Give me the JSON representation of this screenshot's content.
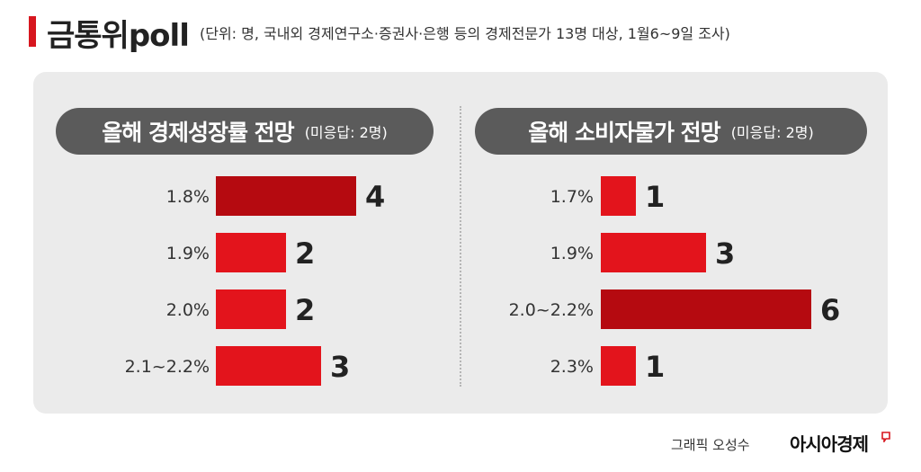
{
  "title": "금통위poll",
  "subtitle": "(단위: 명, 국내외 경제연구소·증권사·은행 등의 경제전문가 13명 대상, 1월6~9일 조사)",
  "credit": "그래픽 오성수",
  "logo_text": "아시아경제",
  "colors": {
    "accent": "#d7171f",
    "bar": "#e3141c",
    "bar_max": "#b50a10",
    "pill": "#5b5b5b",
    "panel": "#ebebeb"
  },
  "chart_data": [
    {
      "type": "bar",
      "orientation": "horizontal",
      "title": "올해 경제성장률 전망",
      "note": "(미응답: 2명)",
      "categories": [
        "1.8%",
        "1.9%",
        "2.0%",
        "2.1~2.2%"
      ],
      "values": [
        4,
        2,
        2,
        3
      ],
      "highlight": "1.8%"
    },
    {
      "type": "bar",
      "orientation": "horizontal",
      "title": "올해 소비자물가 전망",
      "note": "(미응답: 2명)",
      "categories": [
        "1.7%",
        "1.9%",
        "2.0~2.2%",
        "2.3%"
      ],
      "values": [
        1,
        3,
        6,
        1
      ],
      "highlight": "2.0~2.2%"
    }
  ]
}
